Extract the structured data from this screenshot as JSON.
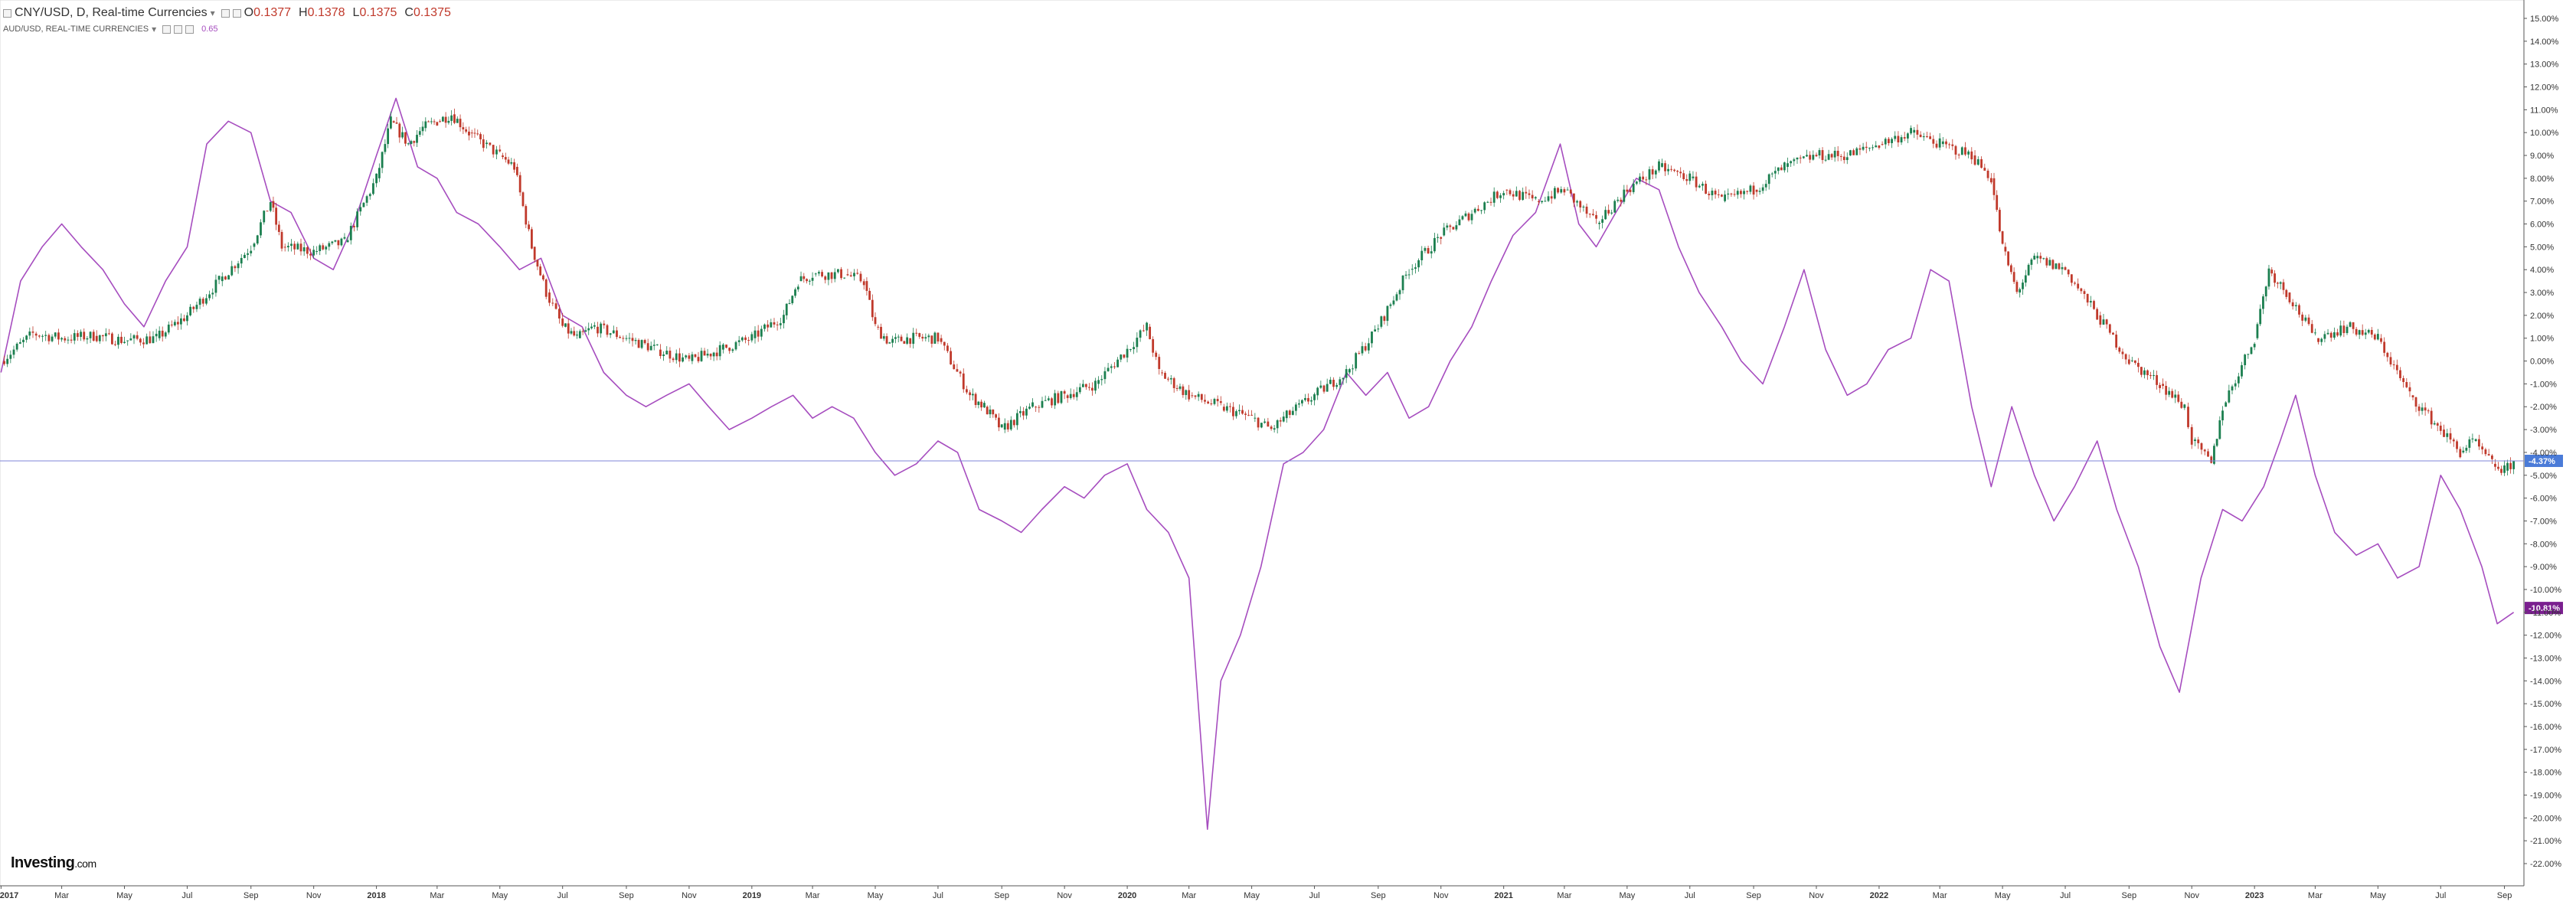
{
  "legend": {
    "primary": {
      "title": "CNY/USD, D, Real-time Currencies",
      "open_label": "O",
      "open": "0.1377",
      "high_label": "H",
      "high": "0.1378",
      "low_label": "L",
      "low": "0.1375",
      "close_label": "C",
      "close": "0.1375"
    },
    "secondary": {
      "title": "AUD/USD, REAL-TIME CURRENCIES",
      "value": "0.65"
    }
  },
  "logo": {
    "text": "Investing",
    "suffix": ".com"
  },
  "colors": {
    "up": "#1b7f4f",
    "down": "#c0392b",
    "compare": "#a64dbf",
    "crosshair": "#7f85d9",
    "badge_primary": "#4a7bd8",
    "badge_secondary": "#7a1f8f"
  },
  "chart_data": {
    "type": "line",
    "x_unit": "date",
    "y_unit": "percent change",
    "ylim": [
      -22,
      15
    ],
    "y_ticks": [
      15,
      14,
      13,
      12,
      11,
      10,
      9,
      8,
      7,
      6,
      5,
      4,
      3,
      2,
      1,
      0,
      -1,
      -2,
      -3,
      -4,
      -5,
      -6,
      -7,
      -8,
      -9,
      -10,
      -11,
      -12,
      -13,
      -14,
      -15,
      -16,
      -17,
      -18,
      -19,
      -20,
      -21,
      -22
    ],
    "x_ticks": [
      {
        "date": "2017-01-01",
        "label": "2017",
        "bold": true
      },
      {
        "date": "2017-03-01",
        "label": "Mar"
      },
      {
        "date": "2017-05-01",
        "label": "May"
      },
      {
        "date": "2017-07-01",
        "label": "Jul"
      },
      {
        "date": "2017-09-01",
        "label": "Sep"
      },
      {
        "date": "2017-11-01",
        "label": "Nov"
      },
      {
        "date": "2018-01-01",
        "label": "2018",
        "bold": true
      },
      {
        "date": "2018-03-01",
        "label": "Mar"
      },
      {
        "date": "2018-05-01",
        "label": "May"
      },
      {
        "date": "2018-07-01",
        "label": "Jul"
      },
      {
        "date": "2018-09-01",
        "label": "Sep"
      },
      {
        "date": "2018-11-01",
        "label": "Nov"
      },
      {
        "date": "2019-01-01",
        "label": "2019",
        "bold": true
      },
      {
        "date": "2019-03-01",
        "label": "Mar"
      },
      {
        "date": "2019-05-01",
        "label": "May"
      },
      {
        "date": "2019-07-01",
        "label": "Jul"
      },
      {
        "date": "2019-09-01",
        "label": "Sep"
      },
      {
        "date": "2019-11-01",
        "label": "Nov"
      },
      {
        "date": "2020-01-01",
        "label": "2020",
        "bold": true
      },
      {
        "date": "2020-03-01",
        "label": "Mar"
      },
      {
        "date": "2020-05-01",
        "label": "May"
      },
      {
        "date": "2020-07-01",
        "label": "Jul"
      },
      {
        "date": "2020-09-01",
        "label": "Sep"
      },
      {
        "date": "2020-11-01",
        "label": "Nov"
      },
      {
        "date": "2021-01-01",
        "label": "2021",
        "bold": true
      },
      {
        "date": "2021-03-01",
        "label": "Mar"
      },
      {
        "date": "2021-05-01",
        "label": "May"
      },
      {
        "date": "2021-07-01",
        "label": "Jul"
      },
      {
        "date": "2021-09-01",
        "label": "Sep"
      },
      {
        "date": "2021-11-01",
        "label": "Nov"
      },
      {
        "date": "2022-01-01",
        "label": "2022",
        "bold": true
      },
      {
        "date": "2022-03-01",
        "label": "Mar"
      },
      {
        "date": "2022-05-01",
        "label": "May"
      },
      {
        "date": "2022-07-01",
        "label": "Jul"
      },
      {
        "date": "2022-09-01",
        "label": "Sep"
      },
      {
        "date": "2022-11-01",
        "label": "Nov"
      },
      {
        "date": "2023-01-01",
        "label": "2023",
        "bold": true
      },
      {
        "date": "2023-03-01",
        "label": "Mar"
      },
      {
        "date": "2023-05-01",
        "label": "May"
      },
      {
        "date": "2023-07-01",
        "label": "Jul"
      },
      {
        "date": "2023-09-01",
        "label": "Sep"
      }
    ],
    "current_values": [
      {
        "series": "CNY/USD",
        "value": -4.37,
        "label": "-4.37%"
      },
      {
        "series": "AUD/USD",
        "value": -10.81,
        "label": "-10.81%"
      }
    ],
    "series": [
      {
        "name": "CNY/USD",
        "style": "candlestick",
        "x": [
          "2017-01-01",
          "2017-02-01",
          "2017-03-01",
          "2017-04-01",
          "2017-05-01",
          "2017-06-01",
          "2017-07-01",
          "2017-08-01",
          "2017-09-01",
          "2017-09-20",
          "2017-10-01",
          "2017-11-01",
          "2017-12-01",
          "2018-01-01",
          "2018-01-15",
          "2018-02-01",
          "2018-02-15",
          "2018-03-01",
          "2018-03-15",
          "2018-04-01",
          "2018-04-15",
          "2018-05-01",
          "2018-05-15",
          "2018-06-01",
          "2018-06-15",
          "2018-07-01",
          "2018-07-15",
          "2018-08-01",
          "2018-09-01",
          "2018-10-01",
          "2018-11-01",
          "2018-12-01",
          "2019-01-01",
          "2019-02-01",
          "2019-02-15",
          "2019-03-01",
          "2019-04-01",
          "2019-04-20",
          "2019-05-01",
          "2019-05-15",
          "2019-06-01",
          "2019-07-01",
          "2019-08-01",
          "2019-08-15",
          "2019-09-01",
          "2019-10-01",
          "2019-11-01",
          "2019-12-01",
          "2020-01-01",
          "2020-01-20",
          "2020-02-01",
          "2020-03-01",
          "2020-04-01",
          "2020-05-01",
          "2020-05-20",
          "2020-06-01",
          "2020-07-01",
          "2020-08-01",
          "2020-09-01",
          "2020-10-01",
          "2020-11-01",
          "2020-12-01",
          "2021-01-01",
          "2021-02-01",
          "2021-03-01",
          "2021-04-01",
          "2021-05-01",
          "2021-06-01",
          "2021-07-01",
          "2021-08-01",
          "2021-09-01",
          "2021-10-01",
          "2021-11-01",
          "2021-12-01",
          "2022-01-01",
          "2022-02-01",
          "2022-03-01",
          "2022-04-01",
          "2022-04-20",
          "2022-05-01",
          "2022-05-15",
          "2022-06-01",
          "2022-07-01",
          "2022-08-01",
          "2022-09-01",
          "2022-10-01",
          "2022-10-25",
          "2022-11-01",
          "2022-11-20",
          "2022-12-01",
          "2023-01-01",
          "2023-01-15",
          "2023-02-01",
          "2023-03-01",
          "2023-04-01",
          "2023-05-01",
          "2023-06-01",
          "2023-07-01",
          "2023-07-20",
          "2023-08-01",
          "2023-08-20",
          "2023-09-01",
          "2023-09-10"
        ],
        "y": [
          0,
          1.2,
          1.0,
          1.1,
          0.9,
          1.0,
          2.0,
          3.5,
          5.0,
          7.0,
          5.0,
          4.8,
          5.2,
          8.0,
          10.5,
          9.5,
          10.2,
          10.5,
          10.8,
          10.0,
          9.5,
          9.0,
          8.5,
          5.0,
          3.0,
          1.5,
          1.0,
          1.5,
          1.0,
          0.5,
          0.0,
          0.5,
          1.0,
          2.0,
          3.5,
          3.8,
          3.8,
          3.5,
          1.5,
          0.8,
          1.0,
          1.0,
          -1.5,
          -2.0,
          -3.0,
          -2.0,
          -1.5,
          -1.0,
          0.5,
          1.5,
          -0.5,
          -1.5,
          -2.0,
          -2.5,
          -3.0,
          -2.5,
          -1.5,
          -0.5,
          1.5,
          4.0,
          5.5,
          6.5,
          7.5,
          7.0,
          7.5,
          6.0,
          7.5,
          8.5,
          8.0,
          7.0,
          7.5,
          8.5,
          9.0,
          9.0,
          9.5,
          10.0,
          9.5,
          9.0,
          8.0,
          5.0,
          3.0,
          4.5,
          4.0,
          2.0,
          0.0,
          -1.0,
          -2.0,
          -3.5,
          -4.5,
          -2.0,
          1.0,
          4.0,
          3.0,
          1.0,
          1.5,
          1.0,
          -1.5,
          -3.0,
          -4.0,
          -3.5,
          -4.5,
          -4.8,
          -4.4
        ]
      },
      {
        "name": "AUD/USD",
        "style": "line",
        "x": [
          "2017-01-01",
          "2017-01-20",
          "2017-02-10",
          "2017-03-01",
          "2017-03-20",
          "2017-04-10",
          "2017-05-01",
          "2017-05-20",
          "2017-06-10",
          "2017-07-01",
          "2017-07-20",
          "2017-08-10",
          "2017-09-01",
          "2017-09-20",
          "2017-10-10",
          "2017-11-01",
          "2017-11-20",
          "2017-12-10",
          "2018-01-01",
          "2018-01-20",
          "2018-02-10",
          "2018-03-01",
          "2018-03-20",
          "2018-04-10",
          "2018-05-01",
          "2018-05-20",
          "2018-06-10",
          "2018-07-01",
          "2018-07-20",
          "2018-08-10",
          "2018-09-01",
          "2018-09-20",
          "2018-10-10",
          "2018-11-01",
          "2018-11-20",
          "2018-12-10",
          "2019-01-01",
          "2019-01-20",
          "2019-02-10",
          "2019-03-01",
          "2019-03-20",
          "2019-04-10",
          "2019-05-01",
          "2019-05-20",
          "2019-06-10",
          "2019-07-01",
          "2019-07-20",
          "2019-08-10",
          "2019-09-01",
          "2019-09-20",
          "2019-10-10",
          "2019-11-01",
          "2019-11-20",
          "2019-12-10",
          "2020-01-01",
          "2020-01-20",
          "2020-02-10",
          "2020-03-01",
          "2020-03-19",
          "2020-04-01",
          "2020-04-20",
          "2020-05-10",
          "2020-06-01",
          "2020-06-20",
          "2020-07-10",
          "2020-08-01",
          "2020-08-20",
          "2020-09-10",
          "2020-10-01",
          "2020-10-20",
          "2020-11-10",
          "2020-12-01",
          "2020-12-20",
          "2021-01-10",
          "2021-02-01",
          "2021-02-25",
          "2021-03-15",
          "2021-04-01",
          "2021-04-20",
          "2021-05-10",
          "2021-06-01",
          "2021-06-20",
          "2021-07-10",
          "2021-08-01",
          "2021-08-20",
          "2021-09-10",
          "2021-10-01",
          "2021-10-20",
          "2021-11-10",
          "2021-12-01",
          "2021-12-20",
          "2022-01-10",
          "2022-02-01",
          "2022-02-20",
          "2022-03-10",
          "2022-04-01",
          "2022-04-20",
          "2022-05-10",
          "2022-06-01",
          "2022-06-20",
          "2022-07-10",
          "2022-08-01",
          "2022-08-20",
          "2022-09-10",
          "2022-10-01",
          "2022-10-20",
          "2022-11-10",
          "2022-12-01",
          "2022-12-20",
          "2023-01-10",
          "2023-01-26",
          "2023-02-10",
          "2023-03-01",
          "2023-03-20",
          "2023-04-10",
          "2023-05-01",
          "2023-05-20",
          "2023-06-10",
          "2023-07-01",
          "2023-07-20",
          "2023-08-10",
          "2023-08-25",
          "2023-09-10"
        ],
        "y": [
          -0.5,
          3.5,
          5.0,
          6.0,
          5.0,
          4.0,
          2.5,
          1.5,
          3.5,
          5.0,
          9.5,
          10.5,
          10.0,
          7.0,
          6.5,
          4.5,
          4.0,
          6.0,
          9.0,
          11.5,
          8.5,
          8.0,
          6.5,
          6.0,
          5.0,
          4.0,
          4.5,
          2.0,
          1.5,
          -0.5,
          -1.5,
          -2.0,
          -1.5,
          -1.0,
          -2.0,
          -3.0,
          -2.5,
          -2.0,
          -1.5,
          -2.5,
          -2.0,
          -2.5,
          -4.0,
          -5.0,
          -4.5,
          -3.5,
          -4.0,
          -6.5,
          -7.0,
          -7.5,
          -6.5,
          -5.5,
          -6.0,
          -5.0,
          -4.5,
          -6.5,
          -7.5,
          -9.5,
          -20.5,
          -14.0,
          -12.0,
          -9.0,
          -4.5,
          -4.0,
          -3.0,
          -0.5,
          -1.5,
          -0.5,
          -2.5,
          -2.0,
          0.0,
          1.5,
          3.5,
          5.5,
          6.5,
          9.5,
          6.0,
          5.0,
          6.5,
          8.0,
          7.5,
          5.0,
          3.0,
          1.5,
          0.0,
          -1.0,
          1.5,
          4.0,
          0.5,
          -1.5,
          -1.0,
          0.5,
          1.0,
          4.0,
          3.5,
          -2.0,
          -5.5,
          -2.0,
          -5.0,
          -7.0,
          -5.5,
          -3.5,
          -6.5,
          -9.0,
          -12.5,
          -14.5,
          -9.5,
          -6.5,
          -7.0,
          -5.5,
          -3.5,
          -1.5,
          -5.0,
          -7.5,
          -8.5,
          -8.0,
          -9.5,
          -9.0,
          -5.0,
          -6.5,
          -9.0,
          -11.5,
          -11.0
        ]
      }
    ]
  }
}
